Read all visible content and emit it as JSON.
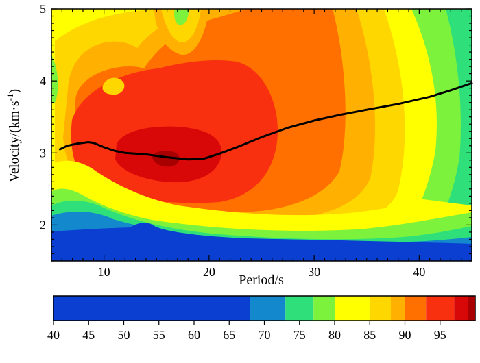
{
  "chart_data": {
    "type": "heatmap",
    "title": "",
    "xlabel": "Period/s",
    "ylabel_main": "Velocity/(km·s",
    "ylabel_sup": "-1",
    "ylabel_tail": ")",
    "xlim": [
      5,
      45
    ],
    "ylim": [
      1.5,
      5
    ],
    "x_ticks": [
      10,
      20,
      30,
      40
    ],
    "y_ticks": [
      2,
      3,
      4,
      5
    ],
    "colorbar": {
      "range": [
        40,
        100
      ],
      "ticks": [
        40,
        45,
        50,
        55,
        60,
        65,
        70,
        75,
        80,
        85,
        90,
        95
      ],
      "levels": [
        {
          "from": 40,
          "to": 68,
          "color": "#0a3fd2"
        },
        {
          "from": 68,
          "to": 73,
          "color": "#1488cc"
        },
        {
          "from": 73,
          "to": 77,
          "color": "#2fe07a"
        },
        {
          "from": 77,
          "to": 80,
          "color": "#7cf23c"
        },
        {
          "from": 80,
          "to": 85,
          "color": "#ffff00"
        },
        {
          "from": 85,
          "to": 88,
          "color": "#ffd700"
        },
        {
          "from": 88,
          "to": 90,
          "color": "#ffb000"
        },
        {
          "from": 90,
          "to": 93,
          "color": "#ff7000"
        },
        {
          "from": 93,
          "to": 97,
          "color": "#f83010"
        },
        {
          "from": 97,
          "to": 99,
          "color": "#d80808"
        },
        {
          "from": 99,
          "to": 100,
          "color": "#a80000"
        }
      ]
    },
    "dispersion_curve": {
      "name": "dispersion curve",
      "x": [
        5.8,
        6.5,
        7.5,
        8.5,
        9.0,
        10.0,
        11.0,
        12.0,
        14.0,
        16.0,
        18.0,
        19.5,
        21.0,
        23.0,
        25.0,
        27.5,
        30.0,
        32.5,
        35.0,
        38.0,
        41.0,
        43.0,
        45.0
      ],
      "y": [
        3.05,
        3.1,
        3.13,
        3.15,
        3.14,
        3.08,
        3.03,
        3.0,
        2.98,
        2.94,
        2.91,
        2.92,
        2.99,
        3.1,
        3.22,
        3.35,
        3.45,
        3.53,
        3.6,
        3.68,
        3.78,
        3.87,
        3.97
      ]
    }
  }
}
